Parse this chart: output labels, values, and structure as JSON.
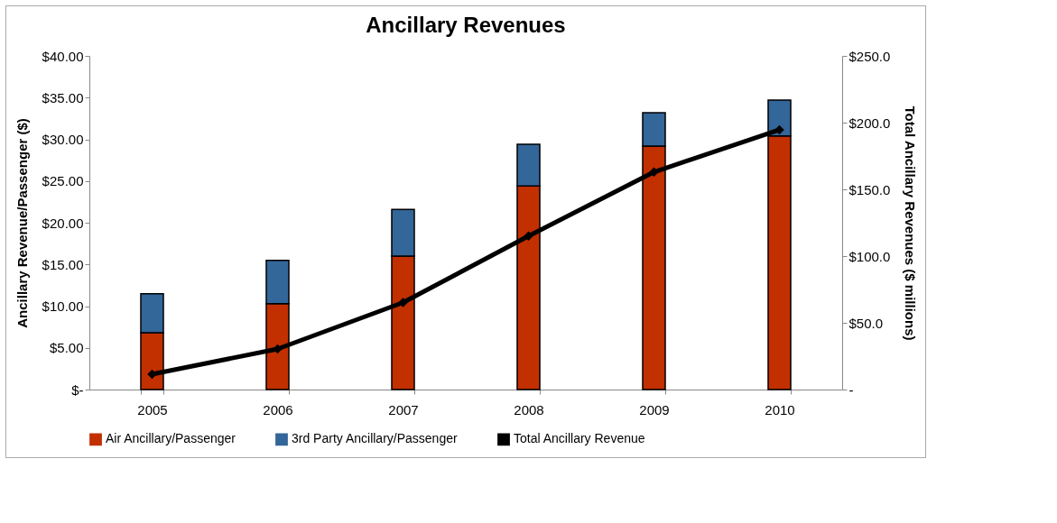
{
  "chart_data": {
    "type": "bar",
    "title": "Ancillary Revenues",
    "ylabel": "Ancillary Revenue/Passenger ($)",
    "y2label": "Total Ancillary Revenues ($ millions)",
    "categories": [
      "2005",
      "2006",
      "2007",
      "2008",
      "2009",
      "2010"
    ],
    "stacked": true,
    "series": [
      {
        "name": "Air Ancillary/Passenger",
        "color": "#c23000",
        "values": [
          6.8,
          10.3,
          16.0,
          24.4,
          29.2,
          30.4
        ]
      },
      {
        "name": "3rd Party Ancillary/Passenger",
        "color": "#336699",
        "values": [
          4.7,
          5.2,
          5.6,
          5.0,
          4.0,
          4.3
        ]
      },
      {
        "name": "Total Ancillary Revenue",
        "type": "line",
        "axis": "y2",
        "color": "#000000",
        "marker": "diamond",
        "values": [
          11.5,
          30.4,
          65.2,
          115,
          163,
          194.6
        ]
      }
    ],
    "ylim": [
      0,
      40
    ],
    "yticks": [
      {
        "value": 0,
        "label": "$-"
      },
      {
        "value": 5,
        "label": "$5.00"
      },
      {
        "value": 10,
        "label": "$10.00"
      },
      {
        "value": 15,
        "label": "$15.00"
      },
      {
        "value": 20,
        "label": "$20.00"
      },
      {
        "value": 25,
        "label": "$25.00"
      },
      {
        "value": 30,
        "label": "$30.00"
      },
      {
        "value": 35,
        "label": "$35.00"
      },
      {
        "value": 40,
        "label": "$40.00"
      }
    ],
    "y2lim": [
      0,
      250
    ],
    "y2ticks": [
      {
        "value": 0,
        "label": "-"
      },
      {
        "value": 50,
        "label": "$50.0"
      },
      {
        "value": 100,
        "label": "$100.0"
      },
      {
        "value": 150,
        "label": "$150.0"
      },
      {
        "value": 200,
        "label": "$200.0"
      },
      {
        "value": 250,
        "label": "$250.0"
      }
    ],
    "grid": false,
    "legend": "bottom"
  }
}
